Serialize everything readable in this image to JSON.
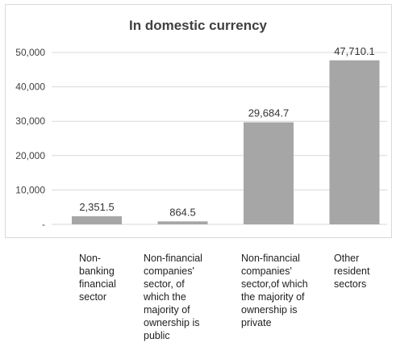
{
  "chart_data": {
    "type": "bar",
    "title": "In domestic currency",
    "categories": [
      "Non-banking financial sector",
      "Non-financial companies' sector, of which the majority of ownership is public",
      "Non-financial companies' sector,of which the majority of ownership is private",
      "Other resident sectors"
    ],
    "category_lines": [
      [
        "Non-",
        "banking",
        "financial",
        "sector"
      ],
      [
        "Non-financial",
        "companies'",
        "sector, of",
        "which the",
        "majority of",
        "ownership is",
        "public"
      ],
      [
        "Non-financial",
        "companies'",
        "sector,of which",
        "the majority of",
        "ownership is",
        "private"
      ],
      [
        "Other",
        "resident",
        "sectors"
      ]
    ],
    "values": [
      2351.5,
      864.5,
      29684.7,
      47710.1
    ],
    "value_labels": [
      "2,351.5",
      "864.5",
      "29,684.7",
      "47,710.1"
    ],
    "yticks": [
      0,
      10000,
      20000,
      30000,
      40000,
      50000
    ],
    "ytick_labels": [
      "-",
      "10,000",
      "20,000",
      "30,000",
      "40,000",
      "50,000"
    ],
    "ylim": [
      0,
      50000
    ],
    "grid": true,
    "colors": {
      "bar": "#a6a6a6",
      "grid": "#d9d9d9",
      "text": "#404040"
    }
  }
}
